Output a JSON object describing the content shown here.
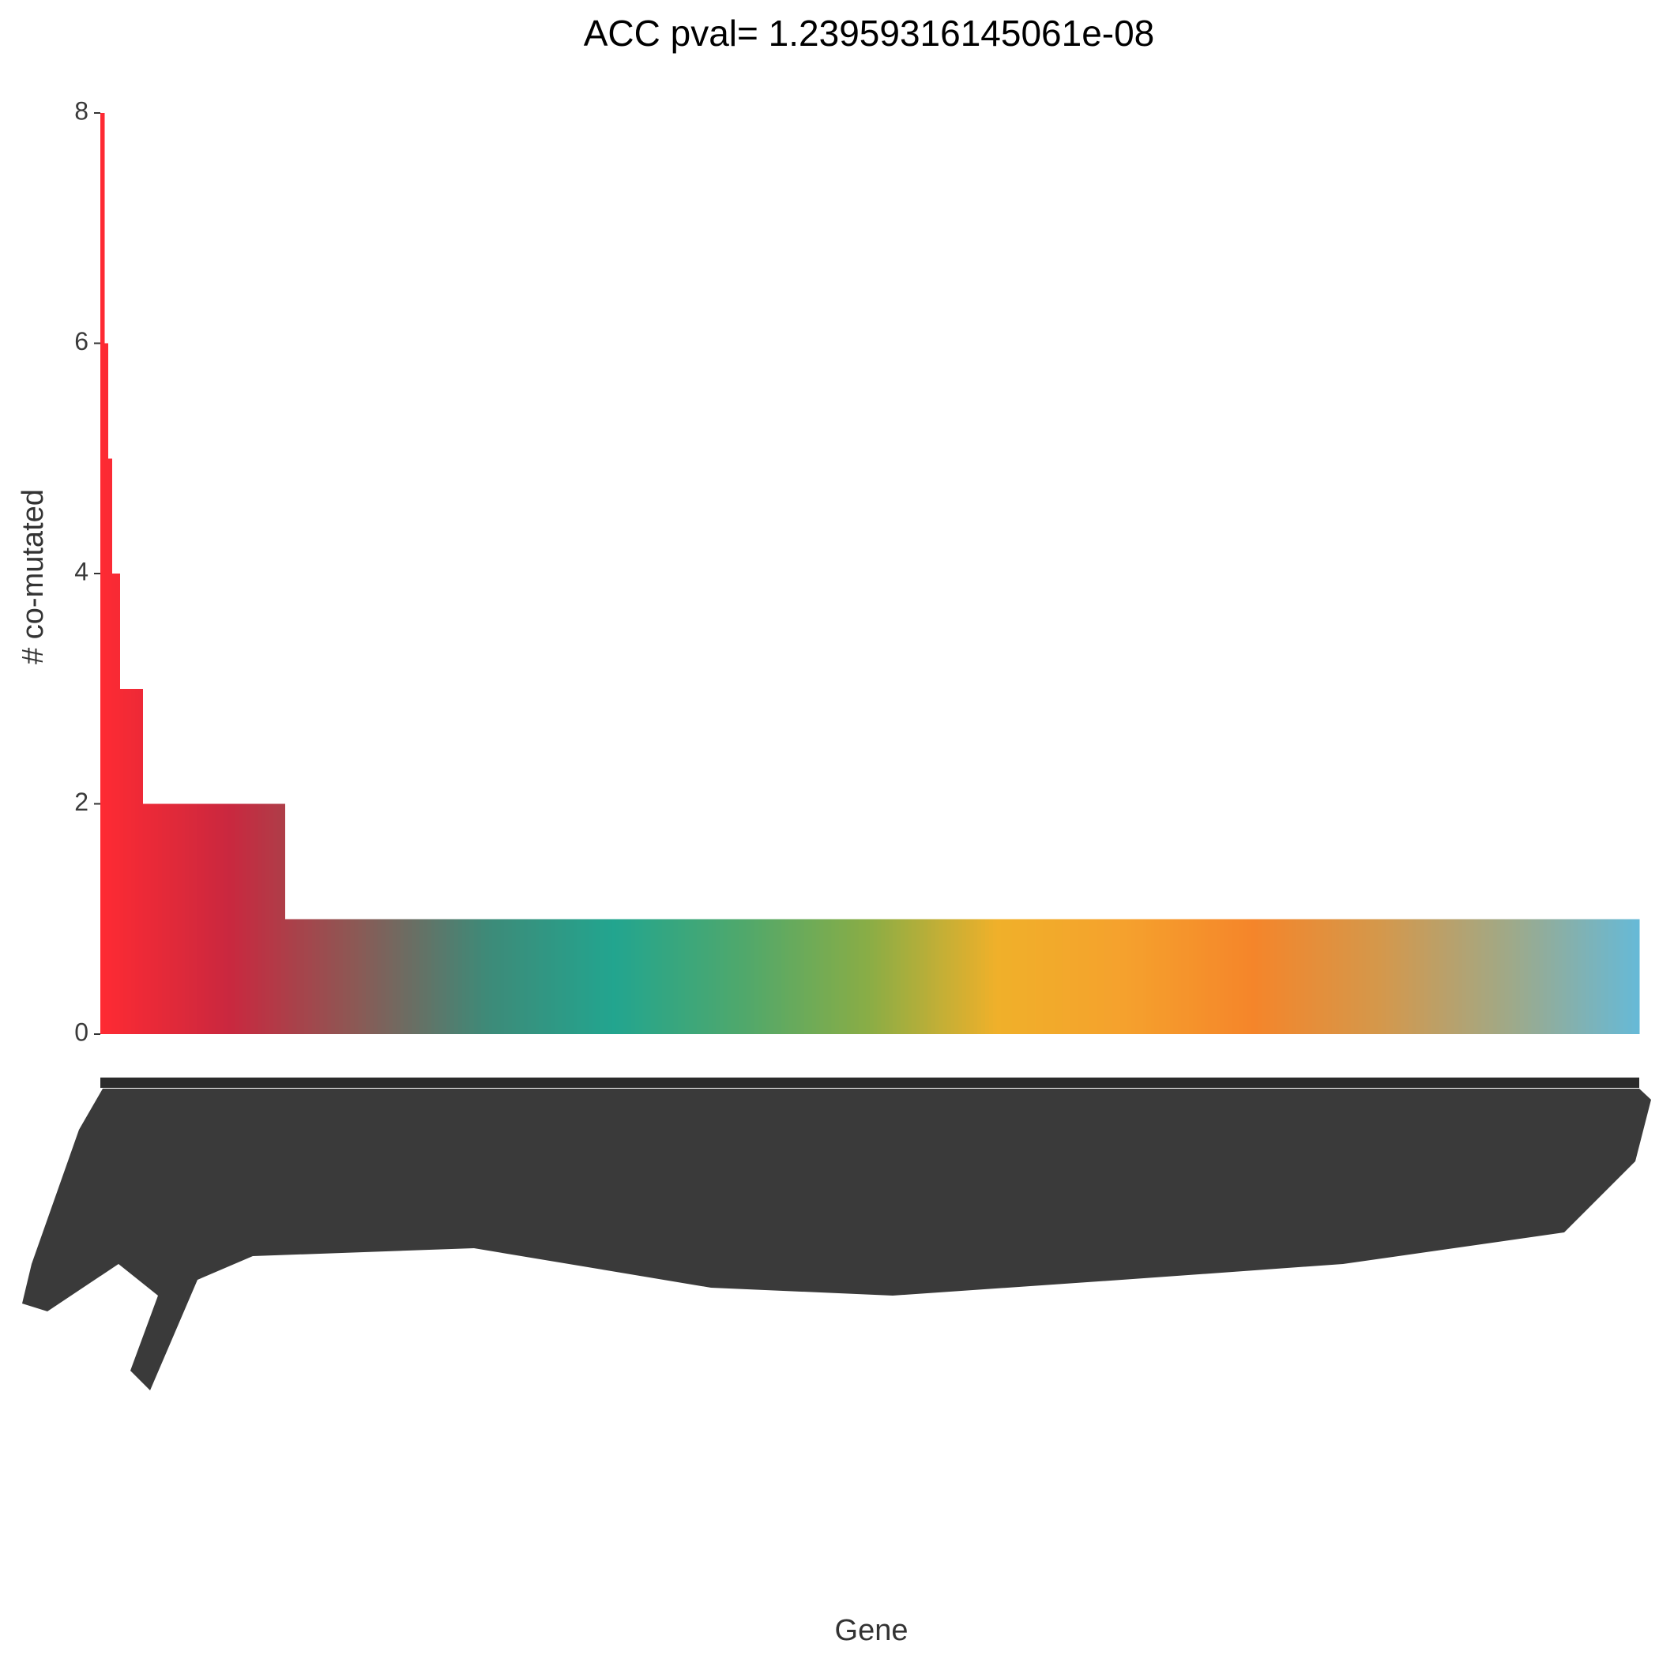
{
  "chart_data": {
    "type": "bar",
    "title": "ACC pval= 1.23959316145061e-08",
    "x_label": "Gene",
    "y_label": "# co-mutated",
    "ylim": [
      0,
      8
    ],
    "yticks": [
      0,
      2,
      4,
      6,
      8
    ],
    "grid": false,
    "palette": [
      "#fe2a33",
      "#c9283f",
      "#8a5a55",
      "#3e8a78",
      "#22a58f",
      "#4fa86c",
      "#8aad45",
      "#f0b02a",
      "#f5a12d",
      "#f5852a",
      "#d4984c",
      "#9fa988",
      "#67b9d6"
    ],
    "categories": [
      null,
      null,
      null,
      null,
      null,
      null,
      null,
      null,
      null,
      null,
      null,
      null,
      null,
      null,
      null,
      null,
      null,
      null,
      null,
      null,
      null,
      null,
      null,
      null,
      null,
      null,
      null,
      null,
      null,
      null,
      null,
      null,
      null,
      null,
      null,
      null,
      null,
      null,
      null,
      null,
      null,
      null,
      null,
      null,
      null,
      null,
      null,
      null,
      null,
      null,
      null,
      null,
      null,
      null,
      null,
      null,
      null,
      null,
      null,
      null,
      null,
      null,
      null,
      null,
      null,
      null,
      null,
      null,
      null,
      null,
      null,
      null,
      null,
      null,
      null,
      null,
      null,
      null,
      null,
      null,
      null,
      null,
      null,
      null,
      null,
      null,
      null,
      null,
      null,
      null,
      null,
      null,
      null,
      null,
      null,
      null,
      null,
      null,
      null,
      null,
      null,
      null,
      null,
      null,
      null,
      null,
      null,
      null,
      null,
      null,
      null,
      null,
      null,
      null,
      null,
      null,
      null,
      null,
      null,
      null,
      null,
      null,
      null,
      null,
      null,
      null,
      null,
      null,
      null,
      null,
      null,
      null,
      null,
      null,
      null,
      null,
      null,
      null,
      null,
      null,
      null,
      null,
      null,
      null,
      null,
      null,
      null,
      null,
      null,
      null,
      null,
      null,
      null,
      null,
      null,
      null,
      null,
      null,
      null,
      null,
      null,
      null,
      null,
      null,
      null,
      null,
      null,
      null,
      null,
      null,
      null,
      null,
      null,
      null,
      null,
      null,
      null,
      null,
      null,
      null,
      null,
      null,
      null,
      null,
      null,
      null,
      null,
      null,
      null,
      null,
      null,
      null,
      null,
      null,
      null,
      null,
      null,
      null,
      null,
      null,
      null,
      null,
      null,
      null,
      null,
      null,
      null,
      null,
      null,
      null,
      null,
      null,
      null,
      null,
      null,
      null,
      null,
      null,
      null,
      null,
      null,
      null,
      null,
      null,
      null,
      null,
      null,
      null,
      null,
      null,
      null,
      null,
      null,
      null,
      null,
      null,
      null,
      null,
      null,
      null,
      null,
      null,
      null,
      null,
      null,
      null,
      null,
      null,
      null,
      null,
      null,
      null,
      null,
      null,
      null,
      null,
      null,
      null,
      null,
      null,
      null,
      null,
      null,
      null,
      null,
      null,
      null,
      null,
      null,
      null,
      null,
      null,
      null,
      null,
      null,
      null,
      null,
      null,
      null,
      null,
      null,
      null,
      null,
      null,
      null,
      null,
      null,
      null,
      null,
      null,
      null,
      null,
      null,
      null,
      null,
      null,
      null,
      null,
      null,
      null,
      null,
      null,
      null,
      null,
      null,
      null,
      null,
      null,
      null,
      null,
      null,
      null,
      null,
      null,
      null,
      null,
      null,
      null,
      null,
      null,
      null,
      null,
      null,
      null,
      null,
      null,
      null,
      null,
      null,
      null,
      null,
      null,
      null,
      null,
      null,
      null,
      null,
      null,
      null,
      null,
      null,
      null,
      null,
      null,
      null,
      null,
      null,
      null,
      null,
      null,
      null,
      null,
      null,
      null,
      null,
      null,
      null,
      null,
      null,
      null,
      null,
      null,
      null,
      null,
      null,
      null,
      null,
      null,
      null,
      null,
      null,
      null,
      null,
      null,
      null,
      null,
      null,
      null,
      null,
      null,
      null,
      null,
      null,
      null,
      null,
      null,
      null,
      null,
      null,
      null,
      null,
      null,
      null,
      null,
      null,
      null,
      null,
      null,
      null,
      null
    ],
    "values": [
      8,
      6,
      5,
      4,
      4,
      3,
      3,
      3,
      3,
      3,
      3,
      2,
      2,
      2,
      2,
      2,
      2,
      2,
      2,
      2,
      2,
      2,
      2,
      2,
      2,
      2,
      2,
      2,
      2,
      2,
      2,
      2,
      2,
      2,
      2,
      2,
      2,
      2,
      2,
      2,
      2,
      2,
      2,
      2,
      2,
      2,
      2,
      2,
      1,
      1,
      1,
      1,
      1,
      1,
      1,
      1,
      1,
      1,
      1,
      1,
      1,
      1,
      1,
      1,
      1,
      1,
      1,
      1,
      1,
      1,
      1,
      1,
      1,
      1,
      1,
      1,
      1,
      1,
      1,
      1,
      1,
      1,
      1,
      1,
      1,
      1,
      1,
      1,
      1,
      1,
      1,
      1,
      1,
      1,
      1,
      1,
      1,
      1,
      1,
      1,
      1,
      1,
      1,
      1,
      1,
      1,
      1,
      1,
      1,
      1,
      1,
      1,
      1,
      1,
      1,
      1,
      1,
      1,
      1,
      1,
      1,
      1,
      1,
      1,
      1,
      1,
      1,
      1,
      1,
      1,
      1,
      1,
      1,
      1,
      1,
      1,
      1,
      1,
      1,
      1,
      1,
      1,
      1,
      1,
      1,
      1,
      1,
      1,
      1,
      1,
      1,
      1,
      1,
      1,
      1,
      1,
      1,
      1,
      1,
      1,
      1,
      1,
      1,
      1,
      1,
      1,
      1,
      1,
      1,
      1,
      1,
      1,
      1,
      1,
      1,
      1,
      1,
      1,
      1,
      1,
      1,
      1,
      1,
      1,
      1,
      1,
      1,
      1,
      1,
      1,
      1,
      1,
      1,
      1,
      1,
      1,
      1,
      1,
      1,
      1,
      1,
      1,
      1,
      1,
      1,
      1,
      1,
      1,
      1,
      1,
      1,
      1,
      1,
      1,
      1,
      1,
      1,
      1,
      1,
      1,
      1,
      1,
      1,
      1,
      1,
      1,
      1,
      1,
      1,
      1,
      1,
      1,
      1,
      1,
      1,
      1,
      1,
      1,
      1,
      1,
      1,
      1,
      1,
      1,
      1,
      1,
      1,
      1,
      1,
      1,
      1,
      1,
      1,
      1,
      1,
      1,
      1,
      1,
      1,
      1,
      1,
      1,
      1,
      1,
      1,
      1,
      1,
      1,
      1,
      1,
      1,
      1,
      1,
      1,
      1,
      1,
      1,
      1,
      1,
      1,
      1,
      1,
      1,
      1,
      1,
      1,
      1,
      1,
      1,
      1,
      1,
      1,
      1,
      1,
      1,
      1,
      1,
      1,
      1,
      1,
      1,
      1,
      1,
      1,
      1,
      1,
      1,
      1,
      1,
      1,
      1,
      1,
      1,
      1,
      1,
      1,
      1,
      1,
      1,
      1,
      1,
      1,
      1,
      1,
      1,
      1,
      1,
      1,
      1,
      1,
      1,
      1,
      1,
      1,
      1,
      1,
      1,
      1,
      1,
      1,
      1,
      1,
      1,
      1,
      1,
      1,
      1,
      1,
      1,
      1,
      1,
      1,
      1,
      1,
      1,
      1,
      1,
      1,
      1,
      1,
      1,
      1,
      1,
      1,
      1,
      1,
      1,
      1,
      1,
      1,
      1,
      1,
      1,
      1,
      1,
      1,
      1,
      1,
      1,
      1,
      1,
      1,
      1,
      1,
      1,
      1,
      1,
      1,
      1,
      1,
      1,
      1,
      1,
      1,
      1,
      1,
      1,
      1,
      1,
      1
    ]
  }
}
